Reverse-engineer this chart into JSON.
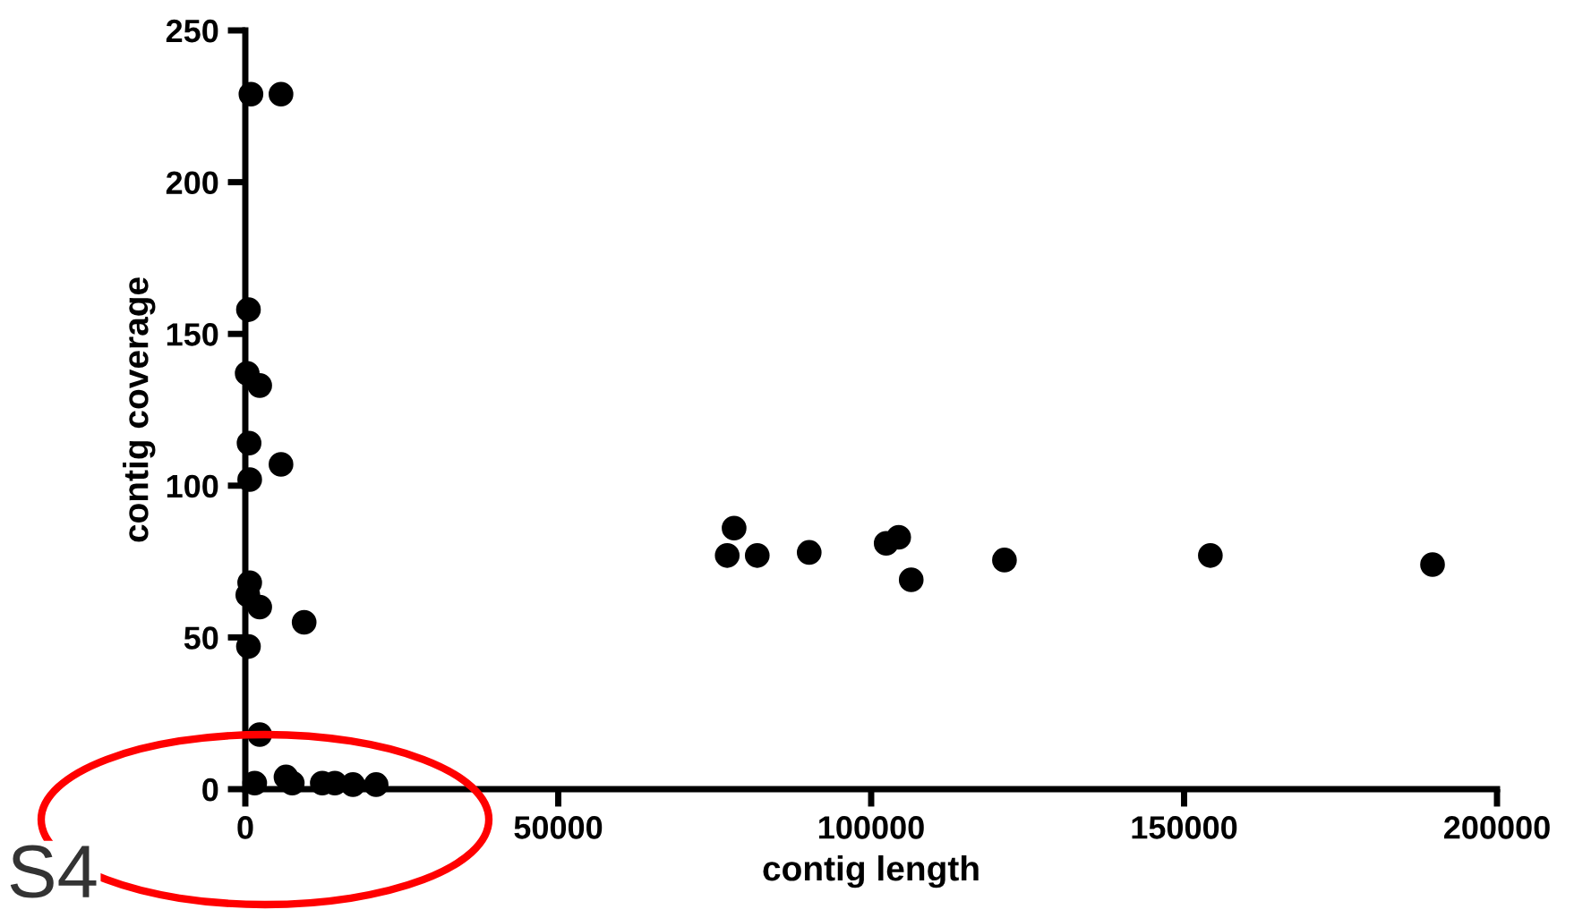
{
  "chart_data": {
    "type": "scatter",
    "xlabel": "contig length",
    "ylabel": "contig coverage",
    "annotations": [
      "S4"
    ],
    "x": [
      900,
      5700,
      500,
      300,
      2300,
      600,
      700,
      5700,
      700,
      400,
      2300,
      9400,
      500,
      2300,
      1500,
      6500,
      7500,
      12300,
      14300,
      17200,
      20900,
      78100,
      77000,
      81800,
      90100,
      102400,
      104400,
      106400,
      121300,
      154200,
      189700
    ],
    "values": [
      229,
      229,
      158,
      137,
      133,
      114,
      102,
      107,
      68,
      64,
      60,
      55,
      47,
      18,
      2,
      4,
      2,
      2,
      2,
      1.5,
      1.5,
      86,
      77,
      77,
      78,
      81,
      83,
      69,
      75.5,
      77,
      74
    ],
    "color": "#000000",
    "marker": "circle",
    "xlim": [
      0,
      200000
    ],
    "ylim": [
      0,
      250
    ],
    "xticks": [
      0,
      50000,
      100000,
      150000,
      200000
    ],
    "yticks": [
      0,
      50,
      100,
      150,
      200,
      250
    ],
    "grid": false,
    "legend": false
  }
}
